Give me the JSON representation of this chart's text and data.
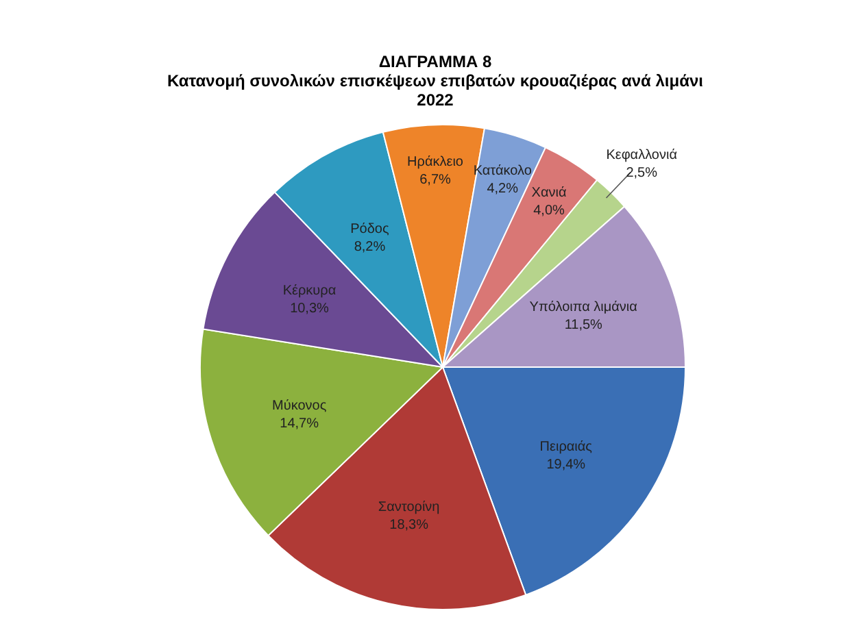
{
  "chart_data": {
    "type": "pie",
    "title": "ΔΙΑΓΡΑΜΜΑ 8\nΚατανομή συνολικών επισκέψεων επιβατών κρουαζιέρας ανά λιμάνι\n2022",
    "categories": [
      "Πειραιάς",
      "Σαντορίνη",
      "Μύκονος",
      "Κέρκυρα",
      "Ρόδος",
      "Ηράκλειο",
      "Κατάκολο",
      "Χανιά",
      "Κεφαλλονιά",
      "Υπόλοιπα λιμάνια"
    ],
    "values": [
      19.4,
      18.3,
      14.7,
      10.3,
      8.2,
      6.7,
      4.2,
      4.0,
      2.5,
      11.5
    ],
    "value_labels": [
      "19,4%",
      "18,3%",
      "14,7%",
      "10,3%",
      "8,2%",
      "6,7%",
      "4,2%",
      "4,0%",
      "2,5%",
      "11,5%"
    ],
    "colors": [
      "#3a6fb5",
      "#b03a36",
      "#8cb13e",
      "#6a4a93",
      "#2e9ac0",
      "#ee8429",
      "#7e9fd6",
      "#d97775",
      "#b6d48c",
      "#a996c4"
    ]
  }
}
